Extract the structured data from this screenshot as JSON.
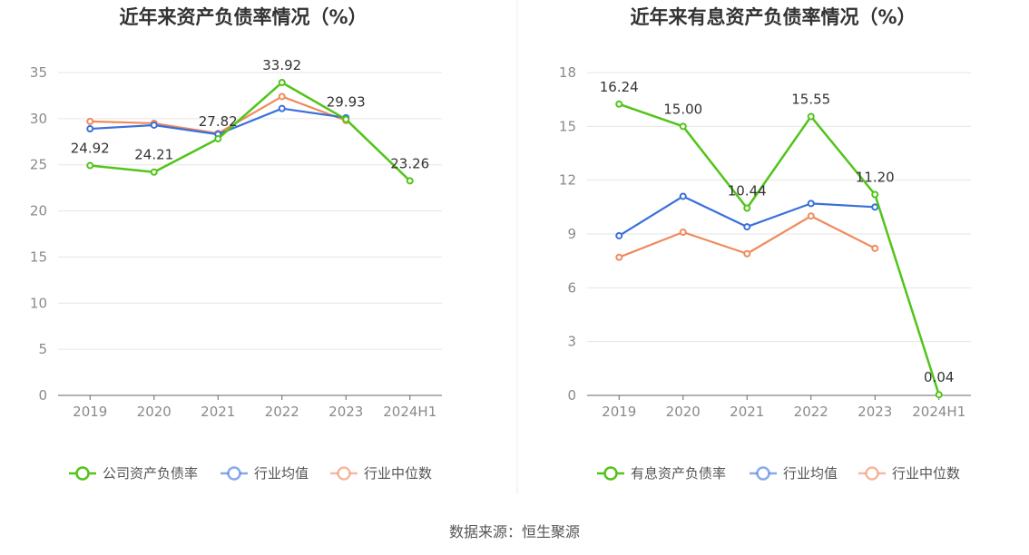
{
  "colors": {
    "company": "#52c41a",
    "industry_avg": "#3a6fdc",
    "industry_median": "#f08a5d",
    "grid": "#e6e6e6",
    "axis": "#666666"
  },
  "source": "数据来源：恒生聚源",
  "chart_data": [
    {
      "type": "line",
      "title": "近年来资产负债率情况（%）",
      "x": [
        "2019",
        "2020",
        "2021",
        "2022",
        "2023",
        "2024H1"
      ],
      "ylim": [
        0,
        35
      ],
      "yticks": [
        0,
        5,
        10,
        15,
        20,
        25,
        30,
        35
      ],
      "grid": true,
      "legend_position": "bottom",
      "series": [
        {
          "name": "公司资产负债率",
          "color_key": "company",
          "labeled": true,
          "values": [
            24.92,
            24.21,
            27.82,
            33.92,
            29.93,
            23.26
          ],
          "labels": [
            "24.92",
            "24.21",
            "27.82",
            "33.92",
            "29.93",
            "23.26"
          ]
        },
        {
          "name": "行业均值",
          "color_key": "industry_avg",
          "labeled": false,
          "values": [
            28.9,
            29.3,
            28.3,
            31.1,
            30.1,
            null
          ]
        },
        {
          "name": "行业中位数",
          "color_key": "industry_median",
          "labeled": false,
          "values": [
            29.7,
            29.5,
            28.4,
            32.4,
            29.8,
            null
          ]
        }
      ]
    },
    {
      "type": "line",
      "title": "近年来有息资产负债率情况（%）",
      "x": [
        "2019",
        "2020",
        "2021",
        "2022",
        "2023",
        "2024H1"
      ],
      "ylim": [
        0,
        18
      ],
      "yticks": [
        0,
        3,
        6,
        9,
        12,
        15,
        18
      ],
      "grid": true,
      "legend_position": "bottom",
      "series": [
        {
          "name": "有息资产负债率",
          "color_key": "company",
          "labeled": true,
          "values": [
            16.24,
            15.0,
            10.44,
            15.55,
            11.2,
            0.04
          ],
          "labels": [
            "16.24",
            "15.00",
            "10.44",
            "15.55",
            "11.20",
            "0.04"
          ]
        },
        {
          "name": "行业均值",
          "color_key": "industry_avg",
          "labeled": false,
          "values": [
            8.9,
            11.1,
            9.4,
            10.7,
            10.5,
            null
          ]
        },
        {
          "name": "行业中位数",
          "color_key": "industry_median",
          "labeled": false,
          "values": [
            7.7,
            9.1,
            7.9,
            10.0,
            8.2,
            null
          ]
        }
      ]
    }
  ]
}
